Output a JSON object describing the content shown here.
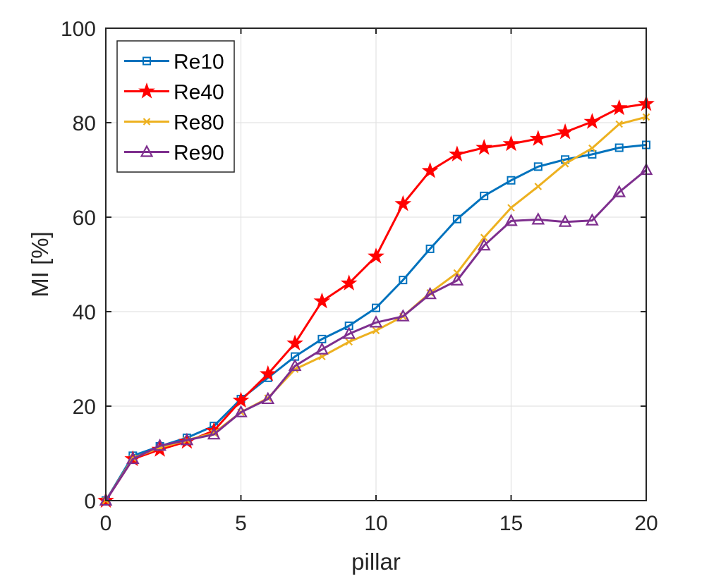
{
  "chart_data": {
    "type": "line",
    "title": "",
    "xlabel": "pillar",
    "ylabel": "MI [%]",
    "xlim": [
      0,
      20
    ],
    "ylim": [
      0,
      100
    ],
    "xticks": [
      0,
      5,
      10,
      15,
      20
    ],
    "yticks": [
      0,
      20,
      40,
      60,
      80,
      100
    ],
    "grid": true,
    "legend_position": "top-left",
    "x": [
      0,
      1,
      2,
      3,
      4,
      5,
      6,
      7,
      8,
      9,
      10,
      11,
      12,
      13,
      14,
      15,
      16,
      17,
      18,
      19,
      20
    ],
    "series": [
      {
        "name": "Re10",
        "color": "#0072BD",
        "marker": "square",
        "values": [
          0,
          9.5,
          11.5,
          13.3,
          15.8,
          21.5,
          26,
          30.5,
          34.2,
          37,
          40.8,
          46.7,
          53.3,
          59.6,
          64.5,
          67.8,
          70.7,
          72.2,
          73.3,
          74.7,
          75.3
        ]
      },
      {
        "name": "Re40",
        "color": "#FF0000",
        "marker": "star",
        "values": [
          0,
          8.8,
          10.8,
          12.5,
          14.8,
          21.2,
          26.8,
          33.3,
          42.2,
          46,
          51.7,
          62.8,
          69.8,
          73.3,
          74.7,
          75.5,
          76.6,
          78,
          80.2,
          83.1,
          84
        ]
      },
      {
        "name": "Re80",
        "color": "#EDB120",
        "marker": "x",
        "values": [
          0,
          9,
          11.2,
          12.8,
          14.3,
          18.7,
          21.7,
          27.8,
          30.5,
          33.6,
          36,
          39,
          44,
          48.2,
          55.7,
          62,
          66.5,
          71.3,
          74.6,
          79.7,
          81.2
        ]
      },
      {
        "name": "Re90",
        "color": "#7E2F8E",
        "marker": "triangle",
        "values": [
          0,
          8.8,
          11.6,
          12.8,
          14,
          18.7,
          21.5,
          28.5,
          32,
          35.3,
          37.7,
          39,
          43.7,
          46.6,
          54,
          59.2,
          59.5,
          59,
          59.3,
          65.3,
          70
        ]
      }
    ]
  }
}
